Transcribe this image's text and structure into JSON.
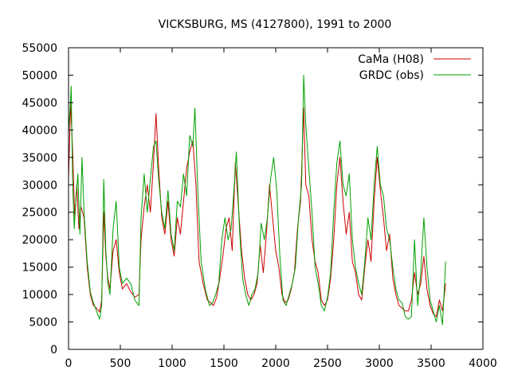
{
  "chart_data": {
    "type": "line",
    "title": "VICKSBURG, MS (4127800), 1991 to 2000",
    "xlabel": "",
    "ylabel": "",
    "xlim": [
      0,
      4000
    ],
    "ylim": [
      0,
      55000
    ],
    "xticks": [
      0,
      500,
      1000,
      1500,
      2000,
      2500,
      3000,
      3500,
      4000
    ],
    "yticks": [
      0,
      5000,
      10000,
      15000,
      20000,
      25000,
      30000,
      35000,
      40000,
      45000,
      50000,
      55000
    ],
    "grid": false,
    "legend": "top-right",
    "series": [
      {
        "name": "CaMa (H08)",
        "color": "#cc0000",
        "points": [
          [
            0,
            31000
          ],
          [
            20,
            45000
          ],
          [
            40,
            36000
          ],
          [
            60,
            24000
          ],
          [
            80,
            30000
          ],
          [
            100,
            22000
          ],
          [
            120,
            26000
          ],
          [
            150,
            24000
          ],
          [
            180,
            15000
          ],
          [
            210,
            10000
          ],
          [
            240,
            8000
          ],
          [
            270,
            7500
          ],
          [
            300,
            6800
          ],
          [
            320,
            9000
          ],
          [
            340,
            25000
          ],
          [
            360,
            17000
          ],
          [
            380,
            13000
          ],
          [
            400,
            11000
          ],
          [
            430,
            18000
          ],
          [
            460,
            20000
          ],
          [
            490,
            14000
          ],
          [
            520,
            11000
          ],
          [
            560,
            12000
          ],
          [
            600,
            10500
          ],
          [
            640,
            9500
          ],
          [
            680,
            10000
          ],
          [
            700,
            20000
          ],
          [
            730,
            26000
          ],
          [
            760,
            30000
          ],
          [
            790,
            25000
          ],
          [
            820,
            34000
          ],
          [
            845,
            43000
          ],
          [
            870,
            33000
          ],
          [
            900,
            24000
          ],
          [
            930,
            21000
          ],
          [
            960,
            27000
          ],
          [
            990,
            20000
          ],
          [
            1020,
            17000
          ],
          [
            1050,
            24000
          ],
          [
            1080,
            21000
          ],
          [
            1110,
            27000
          ],
          [
            1140,
            33000
          ],
          [
            1170,
            36000
          ],
          [
            1200,
            38000
          ],
          [
            1230,
            30000
          ],
          [
            1260,
            16000
          ],
          [
            1300,
            12000
          ],
          [
            1340,
            9000
          ],
          [
            1370,
            8500
          ],
          [
            1400,
            8000
          ],
          [
            1430,
            9500
          ],
          [
            1460,
            13000
          ],
          [
            1490,
            17000
          ],
          [
            1520,
            22000
          ],
          [
            1550,
            24000
          ],
          [
            1580,
            18000
          ],
          [
            1610,
            34000
          ],
          [
            1640,
            26000
          ],
          [
            1670,
            18000
          ],
          [
            1700,
            13000
          ],
          [
            1730,
            10000
          ],
          [
            1760,
            9000
          ],
          [
            1790,
            10000
          ],
          [
            1820,
            12000
          ],
          [
            1850,
            19000
          ],
          [
            1880,
            14000
          ],
          [
            1910,
            21000
          ],
          [
            1940,
            30000
          ],
          [
            1970,
            24000
          ],
          [
            2000,
            18000
          ],
          [
            2030,
            15000
          ],
          [
            2060,
            10000
          ],
          [
            2090,
            8500
          ],
          [
            2120,
            9000
          ],
          [
            2150,
            11000
          ],
          [
            2180,
            14000
          ],
          [
            2210,
            22000
          ],
          [
            2240,
            27000
          ],
          [
            2270,
            44000
          ],
          [
            2290,
            30000
          ],
          [
            2320,
            28000
          ],
          [
            2350,
            20000
          ],
          [
            2380,
            16000
          ],
          [
            2410,
            14000
          ],
          [
            2440,
            9000
          ],
          [
            2470,
            8000
          ],
          [
            2500,
            9000
          ],
          [
            2530,
            13000
          ],
          [
            2560,
            20000
          ],
          [
            2590,
            30000
          ],
          [
            2620,
            35000
          ],
          [
            2650,
            27000
          ],
          [
            2680,
            21000
          ],
          [
            2710,
            25000
          ],
          [
            2740,
            16000
          ],
          [
            2770,
            14000
          ],
          [
            2800,
            10000
          ],
          [
            2830,
            9000
          ],
          [
            2860,
            15000
          ],
          [
            2890,
            20000
          ],
          [
            2920,
            16000
          ],
          [
            2950,
            27000
          ],
          [
            2980,
            35000
          ],
          [
            3010,
            29000
          ],
          [
            3040,
            24000
          ],
          [
            3070,
            18000
          ],
          [
            3100,
            21000
          ],
          [
            3130,
            13000
          ],
          [
            3160,
            10000
          ],
          [
            3190,
            8000
          ],
          [
            3220,
            7500
          ],
          [
            3250,
            7000
          ],
          [
            3280,
            7000
          ],
          [
            3310,
            9000
          ],
          [
            3340,
            14000
          ],
          [
            3370,
            10000
          ],
          [
            3400,
            12000
          ],
          [
            3430,
            17000
          ],
          [
            3460,
            11000
          ],
          [
            3490,
            8000
          ],
          [
            3520,
            6500
          ],
          [
            3550,
            6000
          ],
          [
            3580,
            9000
          ],
          [
            3610,
            7000
          ],
          [
            3640,
            12000
          ]
        ]
      },
      {
        "name": "GRDC (obs)",
        "color": "#00a000",
        "points": [
          [
            0,
            40000
          ],
          [
            15,
            44000
          ],
          [
            25,
            48000
          ],
          [
            40,
            30000
          ],
          [
            55,
            22000
          ],
          [
            70,
            27000
          ],
          [
            90,
            32000
          ],
          [
            110,
            21000
          ],
          [
            130,
            35000
          ],
          [
            150,
            25000
          ],
          [
            180,
            16000
          ],
          [
            210,
            10500
          ],
          [
            240,
            8500
          ],
          [
            270,
            7000
          ],
          [
            300,
            5500
          ],
          [
            320,
            8000
          ],
          [
            340,
            31000
          ],
          [
            360,
            18000
          ],
          [
            380,
            12000
          ],
          [
            400,
            10000
          ],
          [
            430,
            22000
          ],
          [
            460,
            27000
          ],
          [
            490,
            15000
          ],
          [
            520,
            12000
          ],
          [
            560,
            13000
          ],
          [
            600,
            12000
          ],
          [
            640,
            9000
          ],
          [
            680,
            8000
          ],
          [
            700,
            24000
          ],
          [
            730,
            32000
          ],
          [
            760,
            25000
          ],
          [
            790,
            31000
          ],
          [
            820,
            37000
          ],
          [
            845,
            38000
          ],
          [
            870,
            31000
          ],
          [
            900,
            25000
          ],
          [
            930,
            22000
          ],
          [
            960,
            29000
          ],
          [
            990,
            21000
          ],
          [
            1020,
            18000
          ],
          [
            1050,
            27000
          ],
          [
            1080,
            26000
          ],
          [
            1110,
            32000
          ],
          [
            1140,
            28000
          ],
          [
            1170,
            39000
          ],
          [
            1200,
            37000
          ],
          [
            1220,
            44000
          ],
          [
            1250,
            28000
          ],
          [
            1280,
            16000
          ],
          [
            1320,
            11000
          ],
          [
            1360,
            8000
          ],
          [
            1390,
            8500
          ],
          [
            1420,
            10000
          ],
          [
            1450,
            12000
          ],
          [
            1480,
            20000
          ],
          [
            1510,
            24000
          ],
          [
            1540,
            20000
          ],
          [
            1570,
            22000
          ],
          [
            1600,
            30000
          ],
          [
            1620,
            36000
          ],
          [
            1650,
            22000
          ],
          [
            1680,
            13000
          ],
          [
            1710,
            10000
          ],
          [
            1740,
            8000
          ],
          [
            1770,
            10000
          ],
          [
            1800,
            11000
          ],
          [
            1830,
            14000
          ],
          [
            1860,
            23000
          ],
          [
            1890,
            20000
          ],
          [
            1920,
            24000
          ],
          [
            1950,
            31000
          ],
          [
            1980,
            35000
          ],
          [
            2010,
            29000
          ],
          [
            2040,
            17000
          ],
          [
            2070,
            9000
          ],
          [
            2100,
            8000
          ],
          [
            2130,
            10000
          ],
          [
            2160,
            12000
          ],
          [
            2190,
            15000
          ],
          [
            2220,
            24000
          ],
          [
            2250,
            30000
          ],
          [
            2270,
            50000
          ],
          [
            2290,
            41000
          ],
          [
            2320,
            33000
          ],
          [
            2350,
            25000
          ],
          [
            2380,
            15000
          ],
          [
            2410,
            12000
          ],
          [
            2440,
            8000
          ],
          [
            2470,
            7000
          ],
          [
            2500,
            9500
          ],
          [
            2530,
            14000
          ],
          [
            2560,
            25000
          ],
          [
            2590,
            34000
          ],
          [
            2620,
            38000
          ],
          [
            2650,
            30000
          ],
          [
            2680,
            28000
          ],
          [
            2710,
            32000
          ],
          [
            2740,
            20000
          ],
          [
            2770,
            15000
          ],
          [
            2800,
            12000
          ],
          [
            2830,
            10000
          ],
          [
            2860,
            16000
          ],
          [
            2890,
            24000
          ],
          [
            2920,
            20000
          ],
          [
            2950,
            30000
          ],
          [
            2980,
            37000
          ],
          [
            3010,
            30000
          ],
          [
            3040,
            28000
          ],
          [
            3070,
            22000
          ],
          [
            3100,
            20000
          ],
          [
            3130,
            15000
          ],
          [
            3160,
            11000
          ],
          [
            3190,
            9000
          ],
          [
            3220,
            8500
          ],
          [
            3250,
            6000
          ],
          [
            3280,
            5500
          ],
          [
            3310,
            6000
          ],
          [
            3340,
            20000
          ],
          [
            3370,
            8000
          ],
          [
            3400,
            14000
          ],
          [
            3430,
            24000
          ],
          [
            3460,
            15000
          ],
          [
            3490,
            9000
          ],
          [
            3520,
            7000
          ],
          [
            3550,
            5000
          ],
          [
            3580,
            8000
          ],
          [
            3610,
            4500
          ],
          [
            3640,
            16000
          ]
        ]
      }
    ]
  }
}
